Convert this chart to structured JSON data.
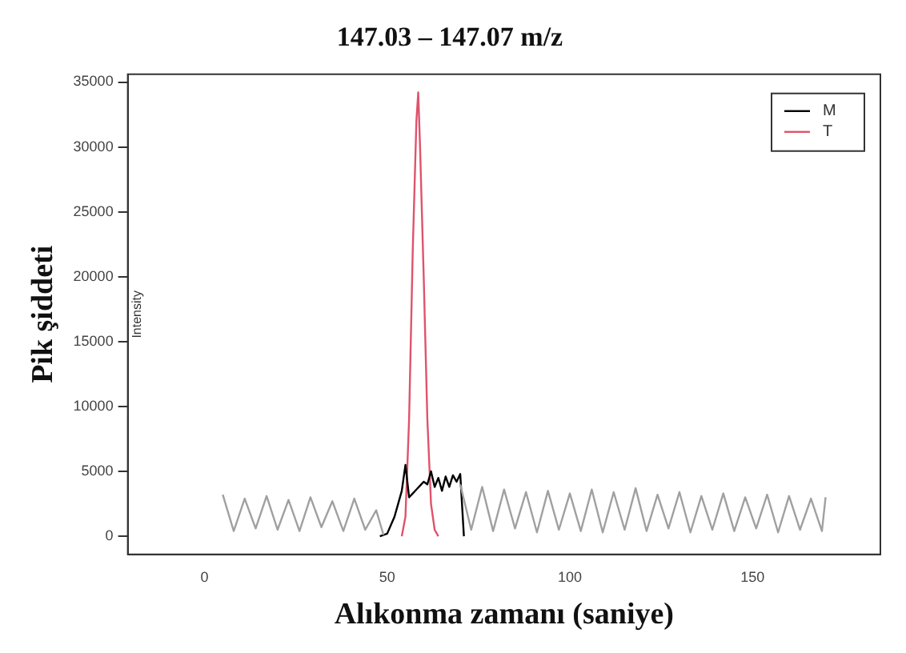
{
  "chart_data": {
    "type": "line",
    "title": "147.03 – 147.07 m/z",
    "xlabel": "Alıkonma zamanı (saniye)",
    "ylabel": "Pik şiddeti",
    "annotations": [
      "Intensity"
    ],
    "xlim": [
      -21,
      185
    ],
    "xticks": [
      0,
      50,
      100,
      150
    ],
    "ylim": [
      -1400,
      35600
    ],
    "yticks": [
      0,
      5000,
      10000,
      15000,
      20000,
      25000,
      30000,
      35000
    ],
    "grid": false,
    "legend": "top right",
    "marker": "none",
    "line_style": "solid",
    "series": [
      {
        "color": "#a0a0a0",
        "x": [
          5,
          8,
          11,
          14,
          17,
          20,
          23,
          26,
          29,
          32,
          35,
          38,
          41,
          44,
          47,
          49,
          60,
          70,
          73,
          76,
          79,
          82,
          85,
          88,
          91,
          94,
          97,
          100,
          103,
          106,
          109,
          112,
          115,
          118,
          121,
          124,
          127,
          130,
          133,
          136,
          139,
          142,
          145,
          148,
          151,
          154,
          157,
          160,
          163,
          166,
          169,
          170
        ],
        "values": [
          3200,
          400,
          2900,
          600,
          3100,
          500,
          2800,
          400,
          3000,
          700,
          2700,
          400,
          2900,
          500,
          2000,
          100,
          null,
          4000,
          500,
          3800,
          400,
          3600,
          600,
          3400,
          300,
          3500,
          500,
          3300,
          400,
          3600,
          300,
          3400,
          500,
          3700,
          400,
          3200,
          600,
          3400,
          300,
          3100,
          500,
          3300,
          400,
          3000,
          600,
          3200,
          300,
          3100,
          500,
          2900,
          400,
          3000
        ]
      },
      {
        "name": "M",
        "color": "#000000",
        "x": [
          48,
          50,
          52,
          53,
          54,
          55,
          56,
          57,
          58,
          59,
          60,
          61,
          62,
          63,
          64,
          65,
          66,
          67,
          68,
          69,
          70,
          71
        ],
        "values": [
          0,
          200,
          1500,
          2500,
          3500,
          5500,
          3000,
          3300,
          3600,
          3900,
          4200,
          4000,
          5000,
          3800,
          4500,
          3500,
          4600,
          3800,
          4700,
          4200,
          4800,
          0
        ]
      },
      {
        "name": "T",
        "color": "#df536b",
        "x": [
          54,
          55,
          56,
          57,
          58,
          58.5,
          59,
          60,
          61,
          62,
          63,
          64
        ],
        "values": [
          0,
          1500,
          9000,
          22000,
          32000,
          34200,
          30000,
          20000,
          9000,
          2500,
          500,
          0
        ]
      }
    ]
  }
}
